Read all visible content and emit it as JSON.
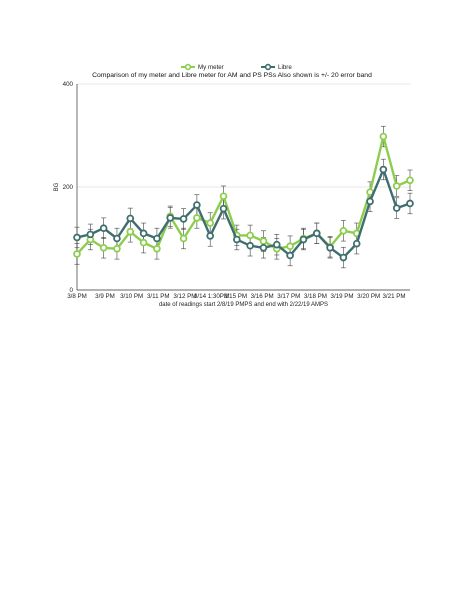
{
  "chart_data": {
    "type": "line",
    "title": "Comparison of my meter and Libre meter for AM and PS PSs Also shown is +/- 20 error band",
    "xlabel": "date of readings start 2/8/19 PMPS and end with 2/22/19 AMPS",
    "ylabel": "BG",
    "ylim": [
      0,
      400
    ],
    "yticks": [
      0,
      200,
      400
    ],
    "grid": "horizontal",
    "legend_position": "top-center",
    "x_ticks": [
      {
        "label": "3/8 PM",
        "index": 0
      },
      {
        "label": "3/9 PM",
        "index": 2.1
      },
      {
        "label": "3/10 PM",
        "index": 4.1
      },
      {
        "label": "3/11 PM",
        "index": 6.1
      },
      {
        "label": "3/12 PM",
        "index": 8.1
      },
      {
        "label": "3/14 1:30PM",
        "index": 10.1
      },
      {
        "label": "3/15 PM",
        "index": 11.9
      },
      {
        "label": "3/16 PM",
        "index": 13.9
      },
      {
        "label": "3/17 PM",
        "index": 15.9
      },
      {
        "label": "3/18 PM",
        "index": 17.9
      },
      {
        "label": "3/19 PM",
        "index": 19.9
      },
      {
        "label": "3/20 PM",
        "index": 21.9
      },
      {
        "label": "3/21 PM",
        "index": 23.8
      }
    ],
    "n_points": 26,
    "error_band": "+/- 20",
    "series": [
      {
        "name": "My meter",
        "color": "#8ccd4e",
        "values": [
          70,
          98,
          82,
          80,
          113,
          92,
          80,
          143,
          100,
          140,
          130,
          182,
          106,
          106,
          95,
          80,
          85,
          100,
          110,
          84,
          115,
          110,
          190,
          298,
          202,
          213
        ]
      },
      {
        "name": "Libre",
        "color": "#3f6e6e",
        "values": [
          102,
          108,
          120,
          100,
          139,
          110,
          100,
          140,
          138,
          165,
          105,
          158,
          98,
          86,
          82,
          88,
          67,
          98,
          110,
          82,
          63,
          90,
          172,
          234,
          159,
          168
        ]
      }
    ]
  }
}
